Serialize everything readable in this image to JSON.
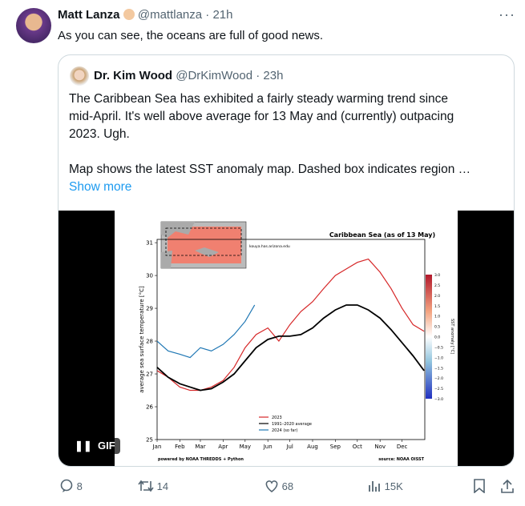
{
  "tweet": {
    "author": {
      "name": "Matt Lanza",
      "handle": "@mattlanza",
      "time": "21h"
    },
    "separator": "·",
    "text": "As you can see, the oceans are full of good news.",
    "quote": {
      "author": {
        "name": "Dr. Kim Wood",
        "handle": "@DrKimWood",
        "time": "23h"
      },
      "lines": [
        "The Caribbean Sea has exhibited a fairly steady warming trend since",
        "mid-April. It's well above average for 13 May and (currently) outpacing",
        "2023. Ugh.",
        "Map shows the latest SST anomaly map. Dashed box indicates region …"
      ],
      "show_more": "Show more",
      "media_badge": "GIF",
      "chart": {
        "type": "line",
        "title": "Caribbean Sea (as of 13 May)",
        "ylabel": "average sea surface temperature [°C]",
        "site": "kouya.has.arizona.edu",
        "footer_left": "powered by NOAA THREDDS + Python",
        "footer_right": "source: NOAA OISST",
        "xlim": [
          0,
          365
        ],
        "ylim": [
          25,
          31.1
        ],
        "yticks": [
          25,
          26,
          27,
          28,
          29,
          30,
          31
        ],
        "xticks": [
          {
            "value": 0,
            "label": "Jan"
          },
          {
            "value": 31,
            "label": "Feb"
          },
          {
            "value": 59,
            "label": "Mar"
          },
          {
            "value": 90,
            "label": "Apr"
          },
          {
            "value": 120,
            "label": "May"
          },
          {
            "value": 151,
            "label": "Jun"
          },
          {
            "value": 181,
            "label": "Jul"
          },
          {
            "value": 212,
            "label": "Aug"
          },
          {
            "value": 243,
            "label": "Sep"
          },
          {
            "value": 273,
            "label": "Oct"
          },
          {
            "value": 304,
            "label": "Nov"
          },
          {
            "value": 334,
            "label": "Dec"
          }
        ],
        "series": [
          {
            "name": "2023",
            "color": "#d62728",
            "x": [
              0,
              15,
              31,
              45,
              59,
              74,
              90,
              105,
              120,
              135,
              151,
              166,
              181,
              196,
              212,
              227,
              243,
              258,
              273,
              288,
              304,
              319,
              334,
              349,
              364
            ],
            "values": [
              27.1,
              26.9,
              26.6,
              26.5,
              26.5,
              26.6,
              26.8,
              27.2,
              27.8,
              28.2,
              28.4,
              28.0,
              28.5,
              28.9,
              29.2,
              29.6,
              30.0,
              30.2,
              30.4,
              30.5,
              30.1,
              29.6,
              29.0,
              28.5,
              28.3
            ]
          },
          {
            "name": "1991–2020 average",
            "color": "#000000",
            "x": [
              0,
              15,
              31,
              45,
              59,
              74,
              90,
              105,
              120,
              135,
              151,
              166,
              181,
              196,
              212,
              227,
              243,
              258,
              273,
              288,
              304,
              319,
              334,
              349,
              364
            ],
            "values": [
              27.2,
              26.9,
              26.7,
              26.6,
              26.5,
              26.55,
              26.75,
              27.0,
              27.4,
              27.8,
              28.05,
              28.15,
              28.15,
              28.2,
              28.4,
              28.7,
              28.95,
              29.1,
              29.1,
              28.95,
              28.7,
              28.35,
              27.95,
              27.55,
              27.1
            ]
          },
          {
            "name": "2024 (so far)",
            "color": "#1f77b4",
            "x": [
              0,
              15,
              31,
              45,
              59,
              74,
              90,
              105,
              120,
              133
            ],
            "values": [
              28.0,
              27.7,
              27.6,
              27.5,
              27.8,
              27.7,
              27.9,
              28.2,
              28.6,
              29.1
            ]
          }
        ],
        "colorbar": {
          "label": "SST anomaly [°C]",
          "ticks": [
            "3.0",
            "2.5",
            "2.0",
            "1.5",
            "1.0",
            "0.5",
            "0.0",
            "−0.5",
            "−1.0",
            "−1.5",
            "−2.0",
            "−2.5",
            "−3.0"
          ]
        }
      }
    },
    "actions": {
      "replies": "8",
      "reposts": "14",
      "likes": "68",
      "views": "15K"
    }
  }
}
